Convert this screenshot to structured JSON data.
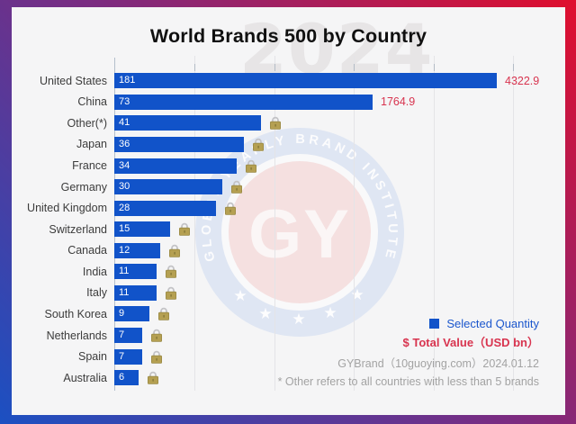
{
  "title": "World Brands 500 by Country",
  "watermark": {
    "year": "2024",
    "monogram": "GY",
    "ring_text": "GLOBAL YEARLY BRAND INSTITUTE"
  },
  "legend": {
    "quantity_label": "Selected Quantity",
    "value_label": "$ Total Value（USD bn）"
  },
  "footer": {
    "source": "GYBrand（10guoying.com）2024.01.12",
    "note": "* Other refers to all countries with less than 5 brands"
  },
  "colors": {
    "bar_blue": "#1153c9",
    "value_red": "#d8344f",
    "legend_blue": "#1b57cd",
    "lock_gold": "#b5a052",
    "frame_gradient_start": "#1b50c2",
    "frame_gradient_mid": "#7c2b80",
    "frame_gradient_end": "#e00e2d"
  },
  "chart_data": {
    "type": "bar",
    "orientation": "horizontal",
    "title": "World Brands 500 by Country",
    "categories": [
      "United States",
      "China",
      "Other(*)",
      "Japan",
      "France",
      "Germany",
      "United Kingdom",
      "Switzerland",
      "Canada",
      "India",
      "Italy",
      "South Korea",
      "Netherlands",
      "Spain",
      "Australia"
    ],
    "series": [
      {
        "name": "Selected Quantity",
        "values": [
          181,
          73,
          41,
          36,
          34,
          30,
          28,
          15,
          12,
          11,
          11,
          9,
          7,
          7,
          6
        ]
      },
      {
        "name": "Total Value (USD bn)",
        "values": [
          4322.9,
          1764.9,
          null,
          null,
          null,
          null,
          null,
          null,
          null,
          null,
          null,
          null,
          null,
          null,
          null
        ]
      }
    ],
    "locked_categories": [
      "Other(*)",
      "Japan",
      "France",
      "Germany",
      "United Kingdom",
      "Switzerland",
      "Canada",
      "India",
      "Italy",
      "South Korea",
      "Netherlands",
      "Spain",
      "Australia"
    ],
    "value_labels_inside_bars": true,
    "grid": "vertical",
    "legend_position": "bottom-right"
  }
}
